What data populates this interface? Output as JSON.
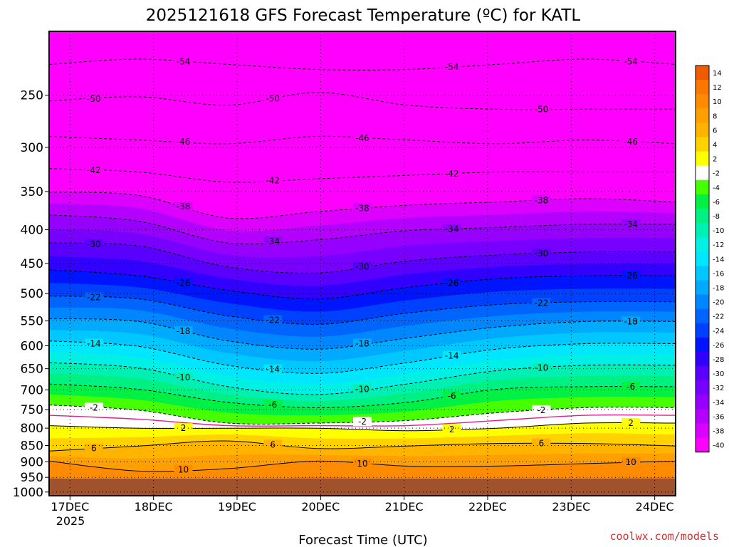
{
  "credit": "coolwx.com/models",
  "chart_data": {
    "type": "heatmap",
    "title": "2025121618 GFS Forecast Temperature (ºC) for KATL",
    "xlabel": "Forecast Time (UTC)",
    "ylabel": "",
    "x_ticks": [
      "17DEC",
      "18DEC",
      "19DEC",
      "20DEC",
      "21DEC",
      "22DEC",
      "23DEC",
      "24DEC"
    ],
    "x_sub_label": "2025",
    "x_range": [
      "2025-12-16T18",
      "2025-12-24T06"
    ],
    "y_ticks": [
      250,
      300,
      350,
      400,
      450,
      500,
      550,
      600,
      650,
      700,
      750,
      800,
      850,
      900,
      950,
      1000
    ],
    "y_range": [
      200,
      1013
    ],
    "y_scale": "log",
    "y_unit": "hPa",
    "grid": true,
    "colorbar": {
      "placement": "right",
      "labels": [
        "14",
        "12",
        "10",
        "8",
        "6",
        "4",
        "2",
        "-2",
        "-4",
        "-6",
        "-8",
        "-10",
        "-12",
        "-14",
        "-16",
        "-18",
        "-20",
        "-22",
        "-24",
        "-26",
        "-28",
        "-30",
        "-32",
        "-34",
        "-36",
        "-38",
        "-40"
      ],
      "colors": [
        "#f05a00",
        "#fa7800",
        "#ff8c00",
        "#ffa000",
        "#ffb400",
        "#ffd200",
        "#ffff00",
        "#ffffff",
        "#46ff00",
        "#00f046",
        "#00f082",
        "#00f0b4",
        "#00f0e6",
        "#00e6ff",
        "#00c8ff",
        "#00aaff",
        "#0087ff",
        "#0064ff",
        "#0041ff",
        "#0014ff",
        "#3200ff",
        "#5a00ff",
        "#7800ff",
        "#9600ff",
        "#b400ff",
        "#dc00ff",
        "#ff00ff"
      ]
    },
    "contours": [
      {
        "level": -54,
        "label": "-54",
        "style": "dashed",
        "values": [
          -55.5,
          -56,
          -55.5,
          -55,
          -55,
          -55.5,
          -56,
          -55.5
        ]
      },
      {
        "level": -50,
        "label": "-50",
        "style": "dashed",
        "values": [
          -51.5,
          -52,
          -51,
          -52.5,
          -51,
          -50.5,
          -50.5,
          -50.5
        ]
      },
      {
        "level": -46,
        "label": "-46",
        "style": "dashed",
        "values": [
          -47,
          -46.5,
          -46,
          -47,
          -46.5,
          -46,
          -46.5,
          -46
        ]
      },
      {
        "level": -42,
        "label": "-42",
        "style": "dashed",
        "values": [
          -42.5,
          -42,
          -40.5,
          -41,
          -41.5,
          -42,
          -42,
          -42
        ]
      },
      {
        "level": -38,
        "label": "-38",
        "style": "dashed",
        "values": [
          -39,
          -38.5,
          -35,
          -36,
          -37,
          -37.5,
          -38,
          -37.5
        ]
      },
      {
        "level": -34,
        "label": "-34",
        "style": "dashed",
        "values": [
          -35.5,
          -34.5,
          -31,
          -31.5,
          -33,
          -33.5,
          -34,
          -34
        ]
      },
      {
        "level": -30,
        "label": "-30",
        "style": "dashed",
        "values": [
          -31,
          -30.5,
          -27,
          -26,
          -28,
          -29,
          -29.5,
          -29.5
        ]
      },
      {
        "level": -26,
        "label": "-26",
        "style": "dashed",
        "values": [
          -26.5,
          -25.5,
          -23,
          -21.5,
          -23.5,
          -25,
          -25.5,
          -25.5
        ]
      },
      {
        "level": -22,
        "label": "-22",
        "style": "dashed",
        "values": [
          -22,
          -21.5,
          -18.5,
          -17,
          -19,
          -20.5,
          -21,
          -21
        ]
      },
      {
        "level": -18,
        "label": "-18",
        "style": "dashed",
        "values": [
          -18,
          -17.5,
          -14,
          -12.5,
          -14.5,
          -16.5,
          -17.5,
          -17.5
        ]
      },
      {
        "level": -14,
        "label": "-14",
        "style": "dashed",
        "values": [
          -14,
          -13,
          -9.5,
          -8,
          -10,
          -12.5,
          -13.5,
          -13.5
        ]
      },
      {
        "level": -10,
        "label": "-10",
        "style": "dashed",
        "values": [
          -10,
          -9,
          -5.5,
          -4,
          -6,
          -8.5,
          -9.5,
          -9.5
        ]
      },
      {
        "level": -6,
        "label": "-6",
        "style": "dashed",
        "values": [
          -6,
          -5,
          -2.5,
          -1.5,
          -2.5,
          -5,
          -5.5,
          -5.5
        ]
      },
      {
        "level": -2,
        "label": "-2",
        "style": "dashed",
        "values": [
          -2,
          -1,
          1.5,
          1.5,
          1,
          -0.5,
          -1.5,
          -1.5
        ]
      },
      {
        "level": 2,
        "label": "2",
        "style": "solid",
        "values": [
          2,
          2.5,
          2.5,
          2.5,
          3,
          2.5,
          1.5,
          1.5
        ]
      },
      {
        "level": 6,
        "label": "6",
        "style": "solid",
        "values": [
          7,
          6,
          5,
          6.5,
          6,
          5.5,
          5.5,
          6
        ]
      },
      {
        "level": 10,
        "label": "10",
        "style": "solid",
        "values": [
          9,
          11,
          10.5,
          9,
          10,
          10,
          9.5,
          9
        ]
      }
    ],
    "freezing_line": {
      "color": "#e0208a"
    }
  }
}
